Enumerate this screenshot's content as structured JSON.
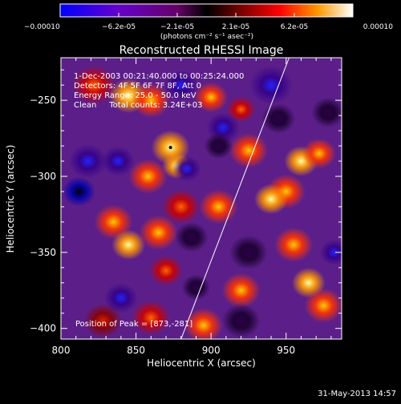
{
  "chart_data": {
    "type": "heatmap",
    "title": "Reconstructed RHESSI Image",
    "xlabel": "Heliocentric X (arcsec)",
    "ylabel": "Heliocentric Y (arcsec)",
    "xlim": [
      800,
      987
    ],
    "ylim": [
      -407,
      -222
    ],
    "xticks": [
      "800",
      "850",
      "900",
      "950"
    ],
    "yticks": [
      "-250",
      "-300",
      "-350",
      "-400"
    ],
    "annotations": [
      "1-Dec-2003 00:21:40.000 to 00:25:24.000",
      "Detectors: 4F 5F 6F 7F 8F, Att 0",
      "Energy Range: 25.0 - 50.0 keV",
      "Clean     Total counts: 3.24E+03",
      "Position of Peak = [873,-281]"
    ],
    "peak": [
      873,
      -281
    ],
    "limb_line": [
      [
        880,
        -407
      ],
      [
        952,
        -222
      ]
    ],
    "colorbar": {
      "ticks": [
        "-0.00010",
        "-6.2e-05",
        "-2.1e-05",
        "2.1e-05",
        "6.2e-05",
        "0.00010"
      ],
      "label": "(photons cm⁻² s⁻¹ asec⁻²)",
      "range": [
        -0.0001,
        0.0001
      ]
    },
    "timestamp": "31-May-2013 14:57",
    "blobs": [
      {
        "x": 822,
        "y": -240,
        "v": 0.6,
        "s": 9
      },
      {
        "x": 845,
        "y": -247,
        "v": 0.9,
        "s": 8
      },
      {
        "x": 860,
        "y": -250,
        "v": 0.8,
        "s": 8
      },
      {
        "x": 873,
        "y": -281,
        "v": 1.0,
        "s": 8
      },
      {
        "x": 877,
        "y": -293,
        "v": 0.9,
        "s": 6
      },
      {
        "x": 858,
        "y": -300,
        "v": 0.7,
        "s": 8
      },
      {
        "x": 835,
        "y": -330,
        "v": 0.8,
        "s": 8
      },
      {
        "x": 845,
        "y": -345,
        "v": 0.9,
        "s": 7
      },
      {
        "x": 865,
        "y": -337,
        "v": 0.8,
        "s": 8
      },
      {
        "x": 880,
        "y": -320,
        "v": 0.6,
        "s": 8
      },
      {
        "x": 900,
        "y": -248,
        "v": 0.7,
        "s": 7
      },
      {
        "x": 920,
        "y": -256,
        "v": 0.5,
        "s": 6
      },
      {
        "x": 925,
        "y": -283,
        "v": 0.7,
        "s": 8
      },
      {
        "x": 960,
        "y": -290,
        "v": 0.9,
        "s": 7
      },
      {
        "x": 972,
        "y": -285,
        "v": 0.7,
        "s": 7
      },
      {
        "x": 950,
        "y": -310,
        "v": 0.8,
        "s": 8
      },
      {
        "x": 940,
        "y": -315,
        "v": 0.9,
        "s": 7
      },
      {
        "x": 905,
        "y": -320,
        "v": 0.7,
        "s": 8
      },
      {
        "x": 955,
        "y": -345,
        "v": 0.8,
        "s": 8
      },
      {
        "x": 965,
        "y": -370,
        "v": 0.9,
        "s": 7
      },
      {
        "x": 975,
        "y": -385,
        "v": 0.8,
        "s": 8
      },
      {
        "x": 920,
        "y": -375,
        "v": 0.7,
        "s": 8
      },
      {
        "x": 895,
        "y": -398,
        "v": 0.8,
        "s": 8
      },
      {
        "x": 860,
        "y": -393,
        "v": 0.5,
        "s": 8
      },
      {
        "x": 828,
        "y": -395,
        "v": 0.4,
        "s": 8
      },
      {
        "x": 870,
        "y": -362,
        "v": 0.5,
        "s": 7
      },
      {
        "x": 812,
        "y": -310,
        "v": -1.0,
        "s": 7
      },
      {
        "x": 818,
        "y": -290,
        "v": -0.6,
        "s": 8
      },
      {
        "x": 838,
        "y": -290,
        "v": -0.6,
        "s": 7
      },
      {
        "x": 880,
        "y": -240,
        "v": -0.7,
        "s": 7
      },
      {
        "x": 908,
        "y": -268,
        "v": -0.7,
        "s": 7
      },
      {
        "x": 905,
        "y": -280,
        "v": -0.5,
        "s": 6
      },
      {
        "x": 940,
        "y": -240,
        "v": -0.6,
        "s": 9
      },
      {
        "x": 945,
        "y": -262,
        "v": -0.5,
        "s": 7
      },
      {
        "x": 887,
        "y": -340,
        "v": -0.5,
        "s": 7
      },
      {
        "x": 884,
        "y": -295,
        "v": -0.6,
        "s": 6
      },
      {
        "x": 925,
        "y": -350,
        "v": -0.5,
        "s": 8
      },
      {
        "x": 982,
        "y": -350,
        "v": -0.8,
        "s": 6
      },
      {
        "x": 920,
        "y": -395,
        "v": -0.4,
        "s": 8
      },
      {
        "x": 840,
        "y": -380,
        "v": -0.6,
        "s": 7
      },
      {
        "x": 890,
        "y": -373,
        "v": -0.4,
        "s": 6
      },
      {
        "x": 978,
        "y": -258,
        "v": -0.5,
        "s": 7
      }
    ]
  }
}
